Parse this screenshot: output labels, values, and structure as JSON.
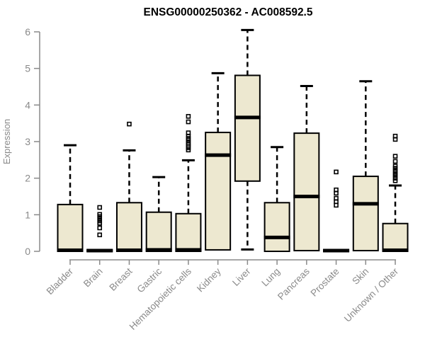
{
  "page": {
    "title": "ENSG00000250362 - AC008592.5"
  },
  "chart_data": {
    "type": "boxplot",
    "title": "ENSG00000250362 - AC008592.5",
    "xlabel": "",
    "ylabel": "Expression",
    "ylim": [
      0,
      6
    ],
    "yticks": [
      0,
      1,
      2,
      3,
      4,
      5,
      6
    ],
    "grid": false,
    "legend": false,
    "colors": {
      "box_fill": "#EDE8D0",
      "box_border": "#000000",
      "median": "#000000",
      "whisker": "#000000",
      "outlier": "#000000",
      "axis": "#8a8a8a",
      "tick_label": "#8a8a8a",
      "title": "#000000",
      "background": "#ffffff"
    },
    "categories": [
      "Bladder",
      "Brain",
      "Breast",
      "Gastric",
      "Hematopoietic cells",
      "Kidney",
      "Liver",
      "Lung",
      "Pancreas",
      "Prostate",
      "Skin",
      "Unknown / Other"
    ],
    "boxes": [
      {
        "category": "Bladder",
        "low": 0,
        "q1": 0,
        "median": 0.03,
        "q3": 1.28,
        "high": 2.9,
        "outliers": []
      },
      {
        "category": "Brain",
        "low": 0,
        "q1": 0,
        "median": 0.02,
        "q3": 0.04,
        "high": 0.05,
        "outliers": [
          0.45,
          0.64,
          0.77,
          0.83,
          0.89,
          0.95,
          1.01,
          1.2
        ]
      },
      {
        "category": "Breast",
        "low": 0,
        "q1": 0,
        "median": 0.03,
        "q3": 1.33,
        "high": 2.76,
        "outliers": [
          3.48
        ]
      },
      {
        "category": "Gastric",
        "low": 0,
        "q1": 0,
        "median": 0.04,
        "q3": 1.07,
        "high": 2.03,
        "outliers": []
      },
      {
        "category": "Hematopoietic cells",
        "low": 0,
        "q1": 0,
        "median": 0.04,
        "q3": 1.03,
        "high": 2.49,
        "outliers": [
          2.77,
          2.83,
          2.88,
          2.93,
          2.98,
          3.04,
          3.09,
          3.15,
          3.24,
          3.54,
          3.69
        ]
      },
      {
        "category": "Kidney",
        "low": 0.04,
        "q1": 0.04,
        "median": 2.63,
        "q3": 3.25,
        "high": 4.87,
        "outliers": []
      },
      {
        "category": "Liver",
        "low": 0.05,
        "q1": 1.92,
        "median": 3.66,
        "q3": 4.81,
        "high": 6.05,
        "outliers": []
      },
      {
        "category": "Lung",
        "low": 0,
        "q1": 0,
        "median": 0.38,
        "q3": 1.33,
        "high": 2.85,
        "outliers": []
      },
      {
        "category": "Pancreas",
        "low": 0,
        "q1": 0.02,
        "median": 1.5,
        "q3": 3.23,
        "high": 4.52,
        "outliers": []
      },
      {
        "category": "Prostate",
        "low": 0,
        "q1": 0,
        "median": 0.02,
        "q3": 0.04,
        "high": 0.05,
        "outliers": [
          1.26,
          1.36,
          1.45,
          1.59,
          1.68,
          2.17
        ]
      },
      {
        "category": "Skin",
        "low": 0,
        "q1": 0.02,
        "median": 1.3,
        "q3": 2.05,
        "high": 4.65,
        "outliers": []
      },
      {
        "category": "Unknown / Other",
        "low": 0,
        "q1": 0,
        "median": 0.03,
        "q3": 0.76,
        "high": 1.8,
        "outliers": [
          1.93,
          2.0,
          2.07,
          2.13,
          2.2,
          2.27,
          2.33,
          2.46,
          2.6,
          3.06,
          3.15
        ]
      }
    ]
  }
}
